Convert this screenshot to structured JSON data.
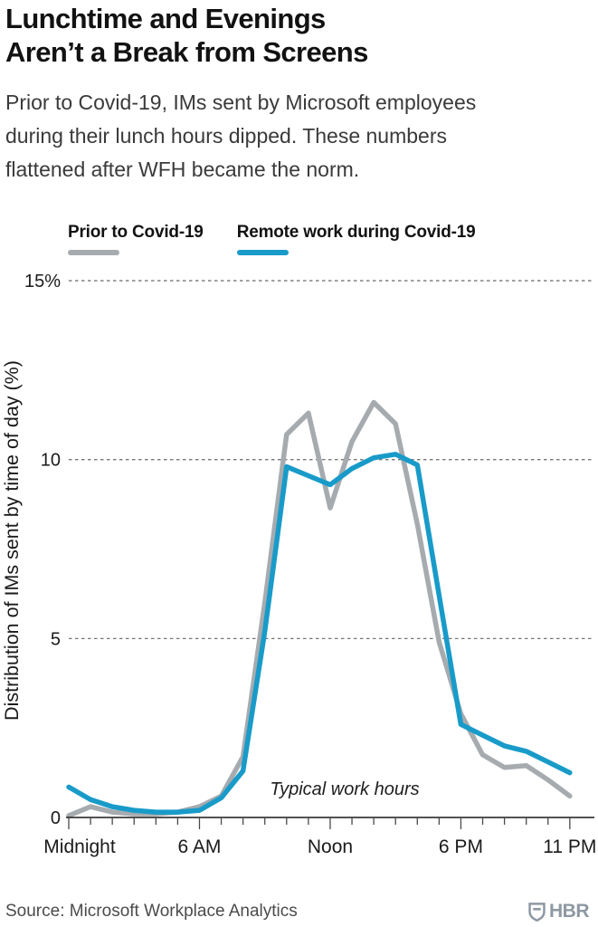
{
  "header": {
    "title": "Lunchtime and Evenings\nAren’t a Break from Screens",
    "subtitle": "Prior to Covid-19, IMs sent by Microsoft employees\nduring their lunch hours dipped. These numbers\nflattened after WFH became the norm."
  },
  "legend": {
    "items": [
      {
        "label": "Prior to Covid-19",
        "color": "#a6abb0"
      },
      {
        "label": "Remote work during Covid-19",
        "color": "#189bc9"
      }
    ]
  },
  "chart_data": {
    "type": "line",
    "x_hours": [
      0,
      1,
      2,
      3,
      4,
      5,
      6,
      7,
      8,
      9,
      10,
      11,
      12,
      13,
      14,
      15,
      16,
      17,
      18,
      19,
      20,
      21,
      22,
      23
    ],
    "series": [
      {
        "name": "Prior to Covid-19",
        "color": "#a6abb0",
        "values": [
          0.05,
          0.3,
          0.15,
          0.1,
          0.1,
          0.15,
          0.3,
          0.6,
          1.7,
          6.0,
          10.7,
          11.3,
          8.65,
          10.5,
          11.6,
          11.0,
          8.2,
          4.9,
          2.9,
          1.75,
          1.4,
          1.45,
          1.05,
          0.6
        ]
      },
      {
        "name": "Remote work during Covid-19",
        "color": "#189bc9",
        "values": [
          0.85,
          0.5,
          0.3,
          0.2,
          0.15,
          0.15,
          0.2,
          0.55,
          1.3,
          5.2,
          9.8,
          9.55,
          9.3,
          9.75,
          10.05,
          10.15,
          9.85,
          6.2,
          2.6,
          2.3,
          2.0,
          1.85,
          1.55,
          1.25
        ]
      }
    ],
    "title": "Lunchtime and Evenings Aren’t a Break from Screens",
    "xlabel": "",
    "ylabel": "Distribution of IMs sent by time of day (%)",
    "ylim": [
      0,
      15
    ],
    "yticks": [
      {
        "value": 0,
        "label": "0"
      },
      {
        "value": 5,
        "label": "5"
      },
      {
        "value": 10,
        "label": "10"
      },
      {
        "value": 15,
        "label": "15%"
      }
    ],
    "xticks": [
      {
        "hour": 0,
        "label": "Midnight"
      },
      {
        "hour": 6,
        "label": "6 AM"
      },
      {
        "hour": 12,
        "label": "Noon"
      },
      {
        "hour": 18,
        "label": "6 PM"
      },
      {
        "hour": 23,
        "label": "11 PM"
      }
    ],
    "annotation": "Typical work hours",
    "grid": "horizontal-dashed",
    "legend_position": "top-left"
  },
  "footer": {
    "source": "Source: Microsoft Workplace Analytics",
    "logo_text": "HBR",
    "logo_color": "#8d98a2"
  }
}
